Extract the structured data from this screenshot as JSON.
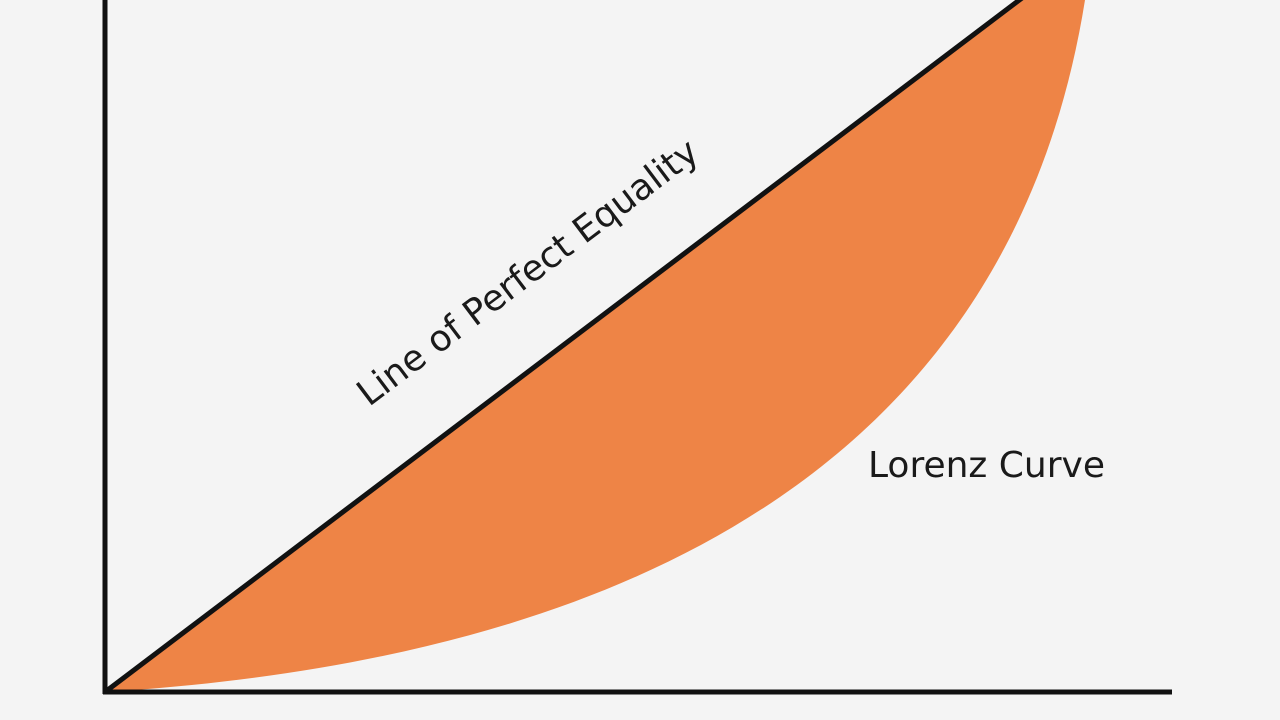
{
  "labels": {
    "equality_line": "Line of Perfect Equality",
    "lorenz_curve": "Lorenz Curve"
  }
}
